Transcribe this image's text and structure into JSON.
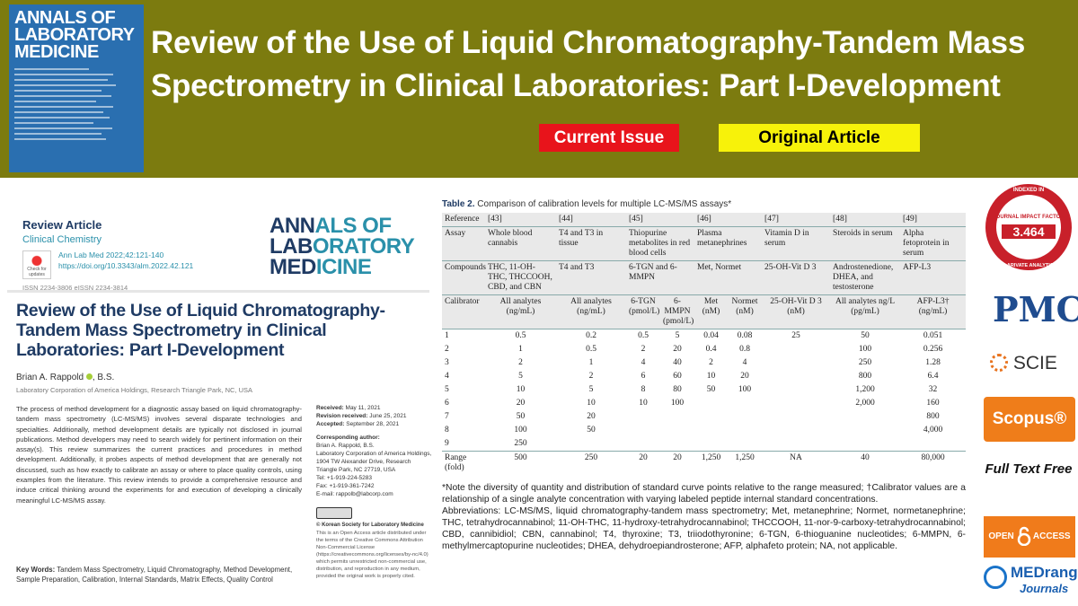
{
  "header": {
    "cover_lines": [
      "ANNALS OF",
      "LABORATORY",
      "MEDICINE"
    ],
    "title": "Review of the Use of Liquid Chromatography-Tandem Mass Spectrometry in Clinical Laboratories: Part I-Development",
    "badges": [
      "Current Issue",
      "Original Article"
    ]
  },
  "article": {
    "type": "Review Article",
    "section": "Clinical Chemistry",
    "citation": "Ann Lab Med 2022;42:121-140",
    "doi": "https://doi.org/10.3343/alm.2022.42.121",
    "issn": "ISSN 2234-3806   eISSN 2234-3814",
    "check_updates": [
      "Check for",
      "updates"
    ],
    "logo_lines": [
      [
        "ANN",
        "ALS OF"
      ],
      [
        "LAB",
        "ORATORY"
      ],
      [
        "MED",
        "ICINE"
      ]
    ],
    "title": "Review of the Use of Liquid Chromatography-Tandem Mass Spectrometry in Clinical Laboratories: Part I-Development",
    "author": "Brian A. Rappold",
    "degree": ", B.S.",
    "affiliation": "Laboratory Corporation of America Holdings, Research Triangle Park, NC, USA",
    "abstract": "The process of method development for a diagnostic assay based on liquid chromatography-tandem mass spectrometry (LC-MS/MS) involves several disparate technologies and specialties. Additionally, method development details are typically not disclosed in journal publications. Method developers may need to search widely for pertinent information on their assay(s). This review summarizes the current practices and procedures in method development. Additionally, it probes aspects of method development that are generally not discussed, such as how exactly to calibrate an assay or where to place quality controls, using examples from the literature. This review intends to provide a comprehensive resource and induce critical thinking around the experiments for and execution of developing a clinically meaningful LC-MS/MS assay.",
    "dates": [
      {
        "label": "Received:",
        "value": "May 11, 2021"
      },
      {
        "label": "Revision received:",
        "value": "June 25, 2021"
      },
      {
        "label": "Accepted:",
        "value": "September 28, 2021"
      }
    ],
    "corresponding": {
      "label": "Corresponding author:",
      "lines": [
        "Brian A. Rappold, B.S.",
        "Laboratory Corporation of America Holdings, 1904 TW Alexander Drive, Research Triangle Park, NC 27719, USA",
        "Tel: +1-919-224-5283",
        "Fax: +1-919-361-7242",
        "E-mail: rappolb@labcorp.com"
      ]
    },
    "copyright": "© Korean Society for Laboratory Medicine",
    "license": "This is an Open Access article distributed under the terms of the Creative Commons Attribution Non-Commercial License (https://creativecommons.org/licenses/by-nc/4.0) which permits unrestricted non-commercial use, distribution, and reproduction in any medium, provided the original work is properly cited.",
    "keywords": {
      "label": "Key Words:",
      "text": "Tandem Mass Spectrometry, Liquid Chromatography, Method Development, Sample Preparation, Calibration, Internal Standards, Matrix Effects, Quality Control"
    }
  },
  "table": {
    "label": "Table 2.",
    "caption": "Comparison of calibration levels for multiple LC-MS/MS assays*",
    "top_rows": [
      {
        "label": "Reference",
        "cells": [
          "[43]",
          "[44]",
          "[45]",
          "[46]",
          "[47]",
          "[48]",
          "[49]"
        ]
      },
      {
        "label": "Assay",
        "cells": [
          "Whole blood cannabis",
          "T4 and T3 in tissue",
          "Thiopurine metabolites in red blood cells",
          "Plasma metanephrines",
          "Vitamin D in serum",
          "Steroids in serum",
          "Alpha fetoprotein in serum"
        ]
      },
      {
        "label": "Compounds",
        "cells": [
          "THC, 11-OH-THC, THCCOOH, CBD, and CBN",
          "T4 and T3",
          "6-TGN and 6-MMPN",
          "Met, Normet",
          "25-OH-Vit D 3",
          "Androstenedione, DHEA, and testosterone",
          "AFP-L3"
        ]
      }
    ],
    "calibrator": {
      "label": "Calibrator",
      "units": [
        [
          "All analytes",
          "(ng/mL)"
        ],
        [
          "All analytes",
          "(ng/mL)"
        ],
        [
          "6-TGN",
          "(pmol/L)"
        ],
        [
          "6-MMPN",
          "(pmol/L)"
        ],
        [
          "Met",
          "(nM)"
        ],
        [
          "Normet",
          "(nM)"
        ],
        [
          "25-OH-Vit D 3",
          "(nM)"
        ],
        [
          "All analytes ng/L",
          "(pg/mL)"
        ],
        [
          "AFP-L3†",
          "(ng/mL)"
        ]
      ]
    },
    "rows": [
      [
        "1",
        "0.5",
        "0.2",
        "0.5",
        "5",
        "0.04",
        "0.08",
        "25",
        "50",
        "0.051"
      ],
      [
        "2",
        "1",
        "0.5",
        "2",
        "20",
        "0.4",
        "0.8",
        null,
        "100",
        "0.256"
      ],
      [
        "3",
        "2",
        "1",
        "4",
        "40",
        "2",
        "4",
        null,
        "250",
        "1.28"
      ],
      [
        "4",
        "5",
        "2",
        "6",
        "60",
        "10",
        "20",
        null,
        "800",
        "6.4"
      ],
      [
        "5",
        "10",
        "5",
        "8",
        "80",
        "50",
        "100",
        null,
        "1,200",
        "32"
      ],
      [
        "6",
        "20",
        "10",
        "10",
        "100",
        null,
        null,
        null,
        "2,000",
        "160"
      ],
      [
        "7",
        "50",
        "20",
        null,
        null,
        null,
        null,
        null,
        null,
        "800"
      ],
      [
        "8",
        "100",
        "50",
        null,
        null,
        null,
        null,
        null,
        null,
        "4,000"
      ],
      [
        "9",
        "250",
        null,
        null,
        null,
        null,
        null,
        null,
        null,
        null
      ],
      [
        "Range (fold)",
        "500",
        "250",
        "20",
        "20",
        "1,250",
        "1,250",
        "NA",
        "40",
        "80,000"
      ]
    ],
    "notes": [
      "*Note the diversity of quantity and distribution of standard curve points relative to the range measured; †Calibrator values are a relationship of a single analyte concentration with varying labeled peptide internal standard concentrations.",
      "Abbreviations: LC-MS/MS, liquid chromatography-tandem mass spectrometry; Met, metanephrine; Normet, normetanephrine; THC, tetrahydrocannabinol; 11-OH-THC, 11-hydroxy-tetrahydrocannabinol; THCCOOH, 11-nor-9-carboxy-tetrahydrocannabinol; CBD, cannibidiol; CBN, cannabinol; T4, thyroxine; T3, triiodothyronine; 6-TGN, 6-thioguanine nucleotides; 6-MMPN, 6-methylmercaptopurine nucleotides; DHEA, dehydroepiandrosterone; AFP, alphafeto protein; NA, not applicable."
    ]
  },
  "sidebar": {
    "seal": {
      "top": "INDEXED IN",
      "label": "JOURNAL IMPACT FACTOR",
      "value": "3.464",
      "bottom": "CLARIVATE ANALYTICS"
    },
    "pmc": "PMC",
    "scie": "SCIE",
    "scopus": "Scopus®",
    "full_text": "Full Text Free",
    "open_access": [
      "OPEN",
      "ACCESS"
    ],
    "medrang": [
      "MEDrang",
      "Journals"
    ]
  }
}
